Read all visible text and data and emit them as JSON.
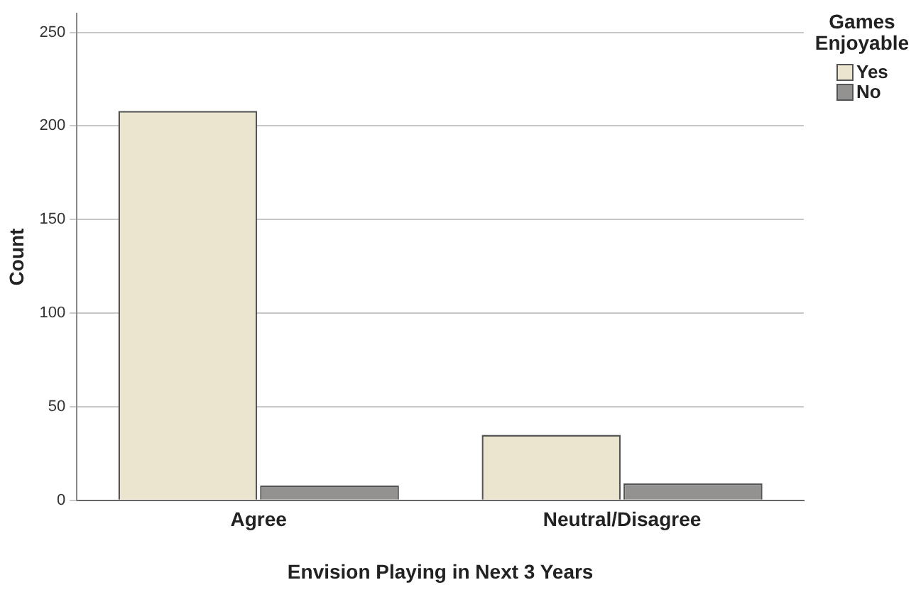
{
  "chart_data": {
    "type": "bar",
    "xlabel": "Envision Playing in Next 3 Years",
    "ylabel": "Count",
    "legend_title": "Games Enjoyable",
    "categories": [
      "Agree",
      "Neutral/Disagree"
    ],
    "series": [
      {
        "name": "Yes",
        "color": "#ebe5d0",
        "values": [
          208,
          35
        ]
      },
      {
        "name": "No",
        "color": "#949191",
        "values": [
          8,
          9
        ]
      }
    ],
    "ylim": [
      0,
      260
    ],
    "yticks": [
      0,
      50,
      100,
      150,
      200,
      250
    ],
    "grid": "y",
    "legend": "top right"
  }
}
